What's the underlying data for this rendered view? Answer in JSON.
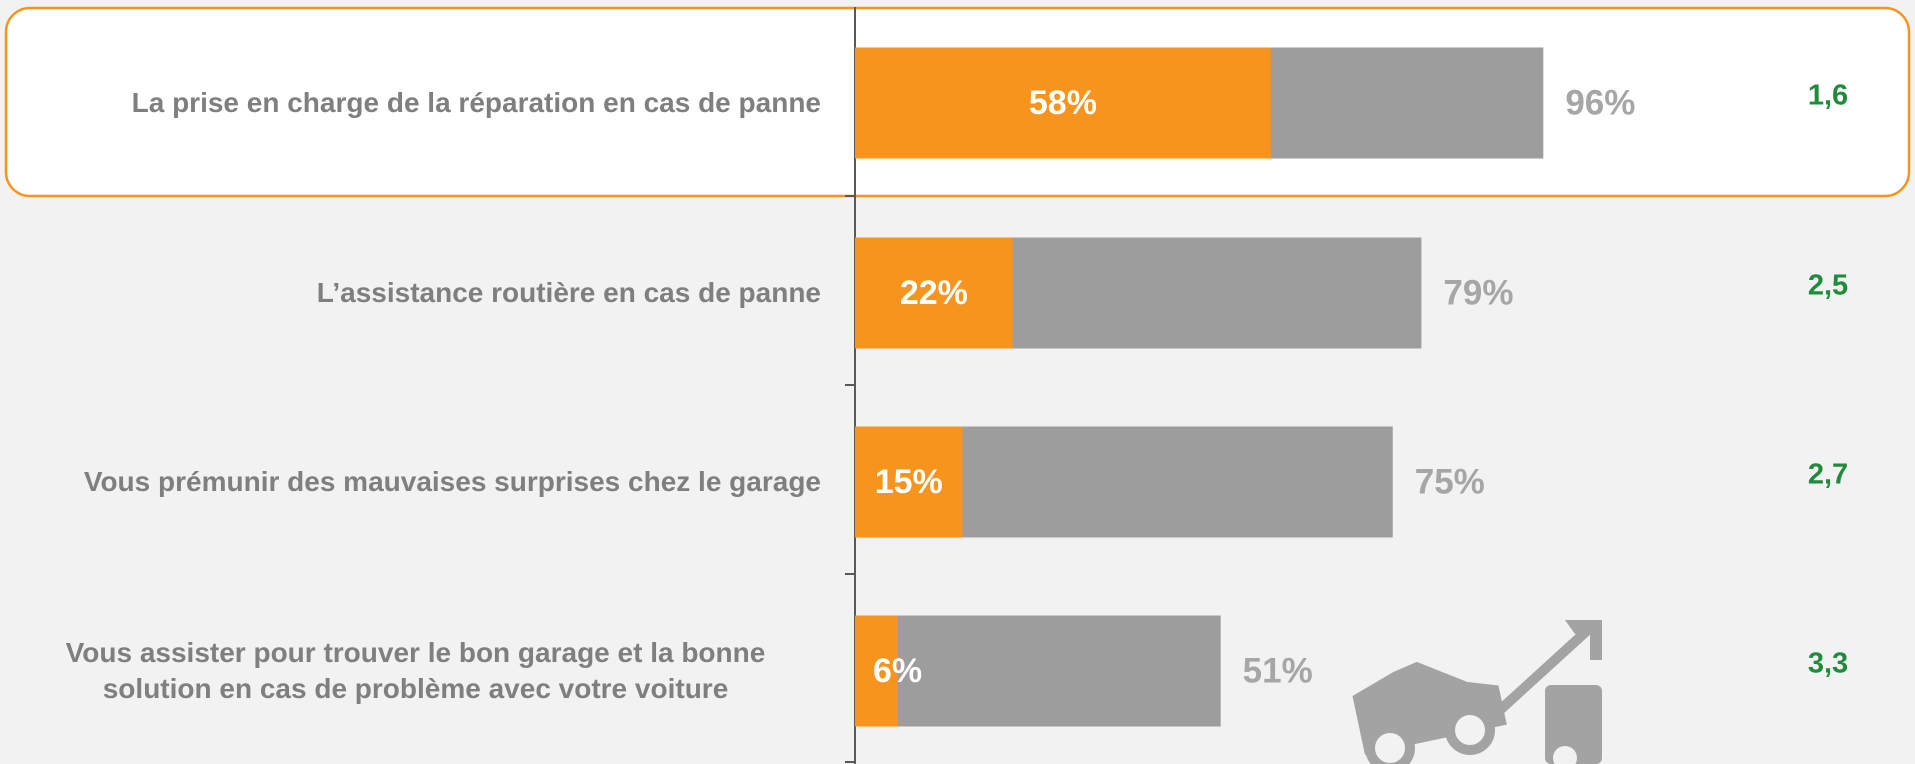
{
  "chart_data": {
    "type": "bar",
    "categories": [
      "La prise en charge de la réparation en cas de panne",
      "L’assistance routière en cas de panne",
      "Vous prémunir des mauvaises surprises chez le garage",
      "Vous assister pour trouver le bon garage et la bonne solution en cas de problème avec votre voiture"
    ],
    "series": [
      {
        "color": "#9d9d9d",
        "values": [
          96,
          79,
          75,
          51
        ],
        "value_labels": [
          "96%",
          "79%",
          "75%",
          "51%"
        ]
      },
      {
        "color": "#f7941d",
        "values": [
          58,
          22,
          15,
          6
        ],
        "value_labels": [
          "58%",
          "22%",
          "15%",
          "6%"
        ]
      }
    ],
    "scores": [
      1.6,
      2.5,
      2.7,
      3.3
    ],
    "score_labels": [
      "1,6",
      "2,5",
      "2,7",
      "3,3"
    ],
    "score_color": "#1f8b3b",
    "xlim": [
      0,
      100
    ]
  }
}
